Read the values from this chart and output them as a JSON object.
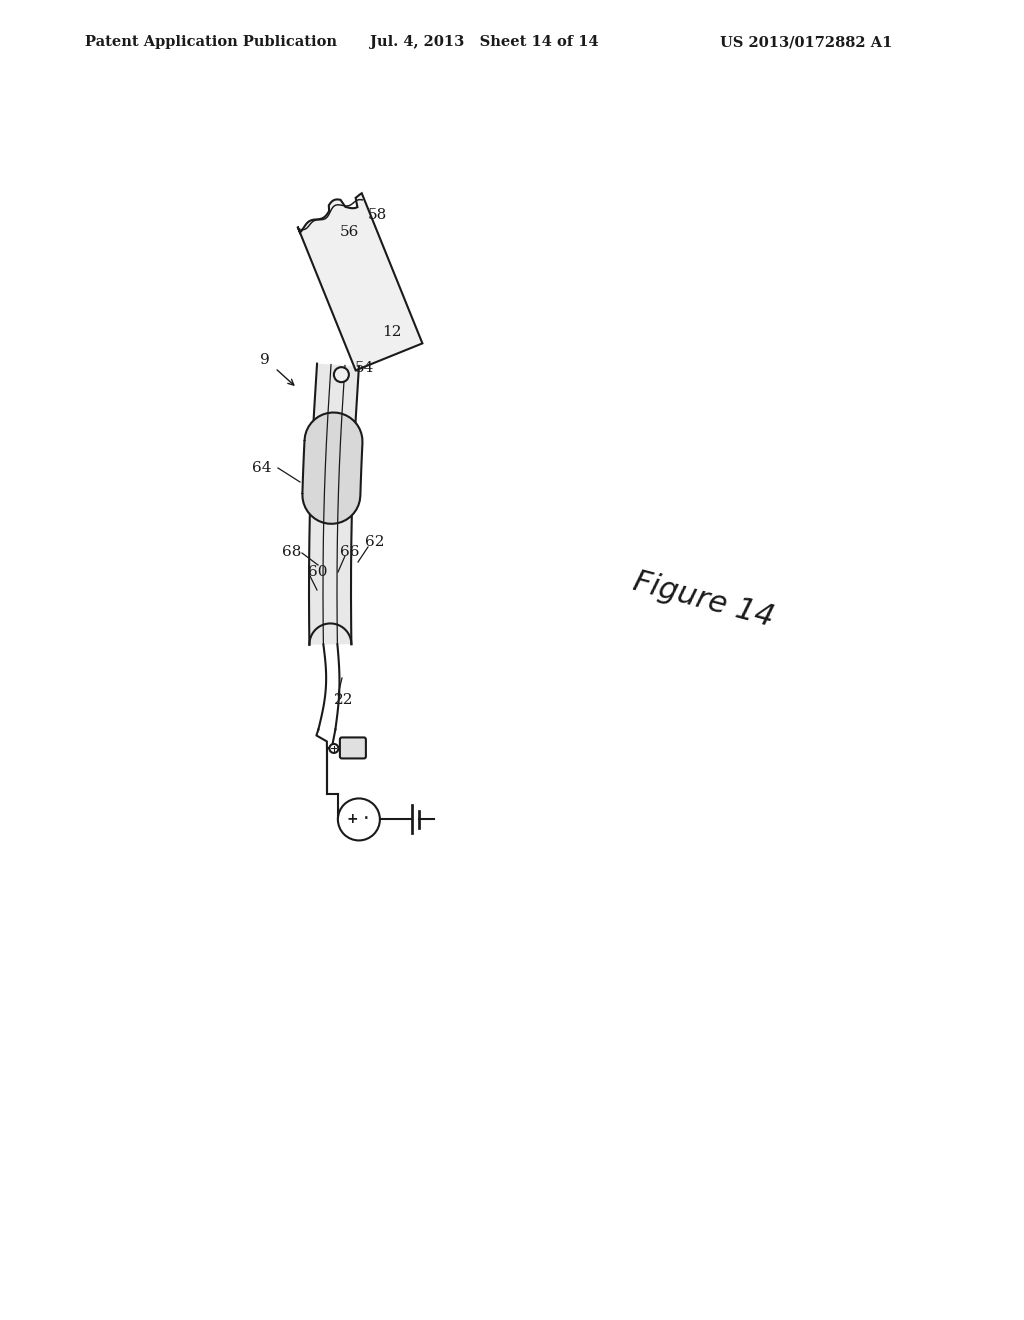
{
  "header_left": "Patent Application Publication",
  "header_mid": "Jul. 4, 2013   Sheet 14 of 14",
  "header_right": "US 2013/0172882 A1",
  "figure_label": "Figure 14",
  "background_color": "#ffffff",
  "line_color": "#1a1a1a",
  "label_fontsize": 11,
  "header_fontsize": 10.5
}
